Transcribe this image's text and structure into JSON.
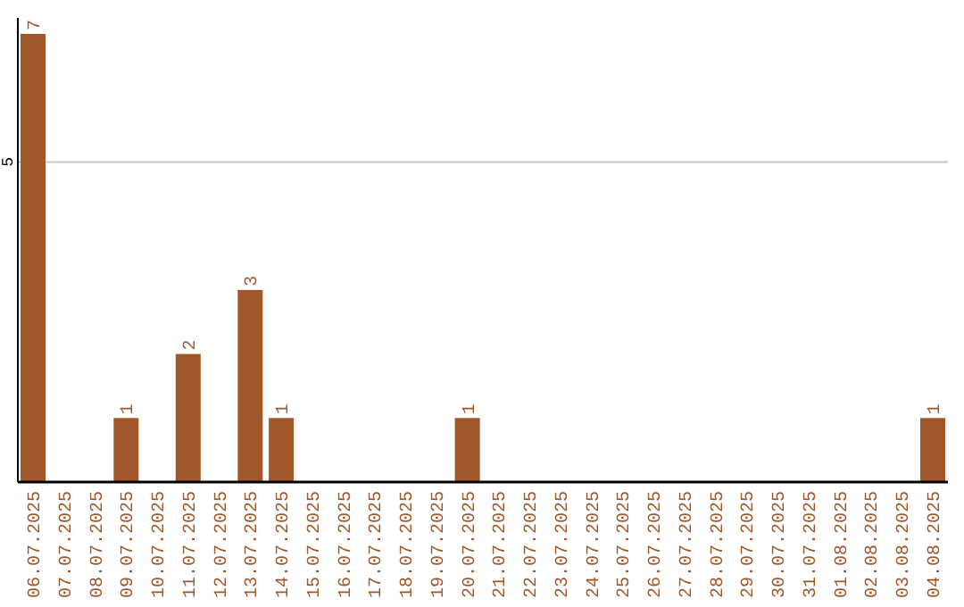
{
  "chart_data": {
    "type": "bar",
    "categories": [
      "06.07.2025",
      "07.07.2025",
      "08.07.2025",
      "09.07.2025",
      "10.07.2025",
      "11.07.2025",
      "12.07.2025",
      "13.07.2025",
      "14.07.2025",
      "15.07.2025",
      "16.07.2025",
      "17.07.2025",
      "18.07.2025",
      "19.07.2025",
      "20.07.2025",
      "21.07.2025",
      "22.07.2025",
      "23.07.2025",
      "24.07.2025",
      "25.07.2025",
      "26.07.2025",
      "27.07.2025",
      "28.07.2025",
      "29.07.2025",
      "30.07.2025",
      "31.07.2025",
      "01.08.2025",
      "02.08.2025",
      "03.08.2025",
      "04.08.2025"
    ],
    "values": [
      7,
      0,
      0,
      1,
      0,
      2,
      0,
      3,
      1,
      0,
      0,
      0,
      0,
      0,
      1,
      0,
      0,
      0,
      0,
      0,
      0,
      0,
      0,
      0,
      0,
      0,
      0,
      0,
      0,
      1
    ],
    "value_labels": [
      "7",
      null,
      null,
      "1",
      null,
      "2",
      null,
      "3",
      "1",
      null,
      null,
      null,
      null,
      null,
      "1",
      null,
      null,
      null,
      null,
      null,
      null,
      null,
      null,
      null,
      null,
      null,
      null,
      null,
      null,
      "1"
    ],
    "color": "#a0582b",
    "ylim": [
      0,
      7.25
    ],
    "yticks": [
      5
    ],
    "grid": "y"
  }
}
